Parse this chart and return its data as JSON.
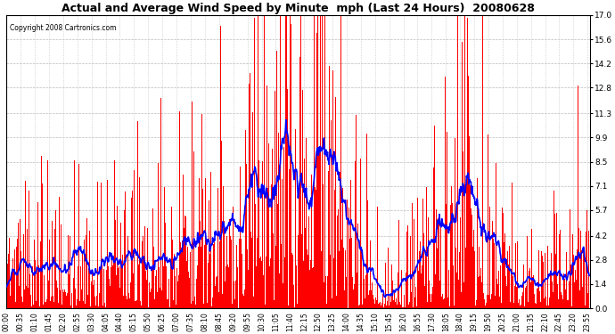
{
  "title": "Actual and Average Wind Speed by Minute  mph (Last 24 Hours)  20080628",
  "copyright": "Copyright 2008 Cartronics.com",
  "ylim": [
    0.0,
    17.0
  ],
  "yticks": [
    0.0,
    1.4,
    2.8,
    4.2,
    5.7,
    7.1,
    8.5,
    9.9,
    11.3,
    12.8,
    14.2,
    15.6,
    17.0
  ],
  "bar_color": "#FF0000",
  "line_color": "#0000FF",
  "background_color": "#FFFFFF",
  "grid_color": "#BBBBBB",
  "n_minutes": 1440,
  "seed": 12345,
  "title_fontsize": 9,
  "copyright_fontsize": 5.5,
  "tick_fontsize": 5.5,
  "ytick_fontsize": 6.5
}
